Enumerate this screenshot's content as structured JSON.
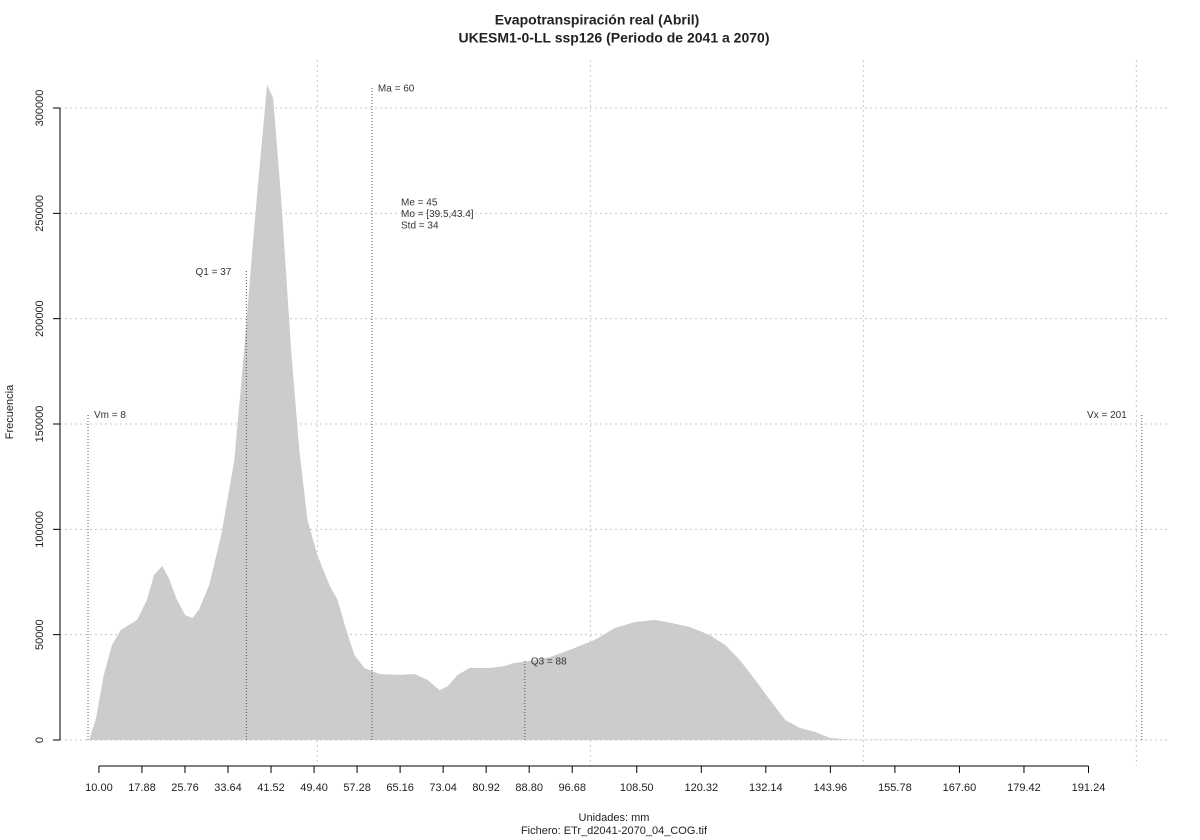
{
  "chart_data": {
    "type": "area",
    "title": "Evapotranspiración real (Abril)",
    "subtitle": "UKESM1-0-LL ssp126 (Periodo de 2041 a 2070)",
    "x_label": "Unidades: mm",
    "caption": "Fichero: ETr_d2041-2070_04_COG.tif",
    "y_label": "Frecuencia",
    "series": [
      {
        "color": "#cccccc",
        "x": [
          8.2,
          9.4,
          10.9,
          12.4,
          14.0,
          17.0,
          18.8,
          20.1,
          21.6,
          22.8,
          24.3,
          25.8,
          27.1,
          28.3,
          30.2,
          32.4,
          34.8,
          36.6,
          38.4,
          39.7,
          40.8,
          41.9,
          43.4,
          45.2,
          46.7,
          48.2,
          50.0,
          52.2,
          53.7,
          55.3,
          56.8,
          58.6,
          61.4,
          65.0,
          67.8,
          70.2,
          72.4,
          73.9,
          75.7,
          77.9,
          81.6,
          84.3,
          86.1,
          88.9,
          92.6,
          96.2,
          100.8,
          104.5,
          108.2,
          111.8,
          115.0,
          118.3,
          121.9,
          124.7,
          127.4,
          130.2,
          132.9,
          135.7,
          138.4,
          141.2,
          143.9,
          147.6,
          199
        ],
        "values": [
          0,
          9500,
          30900,
          45100,
          52200,
          57000,
          66500,
          78300,
          82600,
          76900,
          66500,
          59300,
          57900,
          61700,
          73600,
          97300,
          132900,
          185100,
          242100,
          280100,
          310900,
          304800,
          256300,
          185100,
          137700,
          104400,
          87800,
          73600,
          66500,
          52200,
          40300,
          34200,
          31300,
          30900,
          31300,
          28500,
          23700,
          25600,
          30900,
          34200,
          34200,
          35100,
          36600,
          37500,
          39400,
          42700,
          47500,
          53200,
          56000,
          57000,
          55500,
          53600,
          49800,
          45100,
          38000,
          28500,
          19000,
          9500,
          5700,
          3800,
          950,
          200,
          0
        ]
      }
    ],
    "xlim": [
      8.2,
      201
    ],
    "ylim": [
      0,
      300000
    ],
    "xticks": [
      {
        "value": 10,
        "label": "10.00"
      },
      17.88,
      25.76,
      33.64,
      41.52,
      {
        "value": 49.4,
        "label": "49.40"
      },
      57.28,
      65.16,
      73.04,
      80.92,
      {
        "value": 88.8,
        "label": "88.80"
      },
      96.68,
      {
        "value": 108.5,
        "label": "108.50"
      },
      120.32,
      132.14,
      143.96,
      155.78,
      {
        "value": 167.6,
        "label": "167.60"
      },
      179.42,
      191.24
    ],
    "yticks": [
      0,
      50000,
      100000,
      150000,
      200000,
      250000,
      300000
    ],
    "xgrid": [
      50,
      100,
      150,
      200
    ],
    "grid": true,
    "annotations": [
      {
        "x": 8,
        "y": 155000,
        "label": "Vm = 8"
      },
      {
        "x": 37,
        "y": 223000,
        "label": "Q1 = 37"
      },
      {
        "x": 60,
        "y": 310000,
        "label": "Ma = 60"
      },
      {
        "x": 88,
        "y": 38000,
        "label": "Q3 = 88"
      },
      {
        "x": 201,
        "y": 155000,
        "label": "Vx = 201"
      }
    ],
    "stats": [
      "Me = 45",
      "Mo = [39.5,43.4]",
      "Std = 34"
    ]
  }
}
